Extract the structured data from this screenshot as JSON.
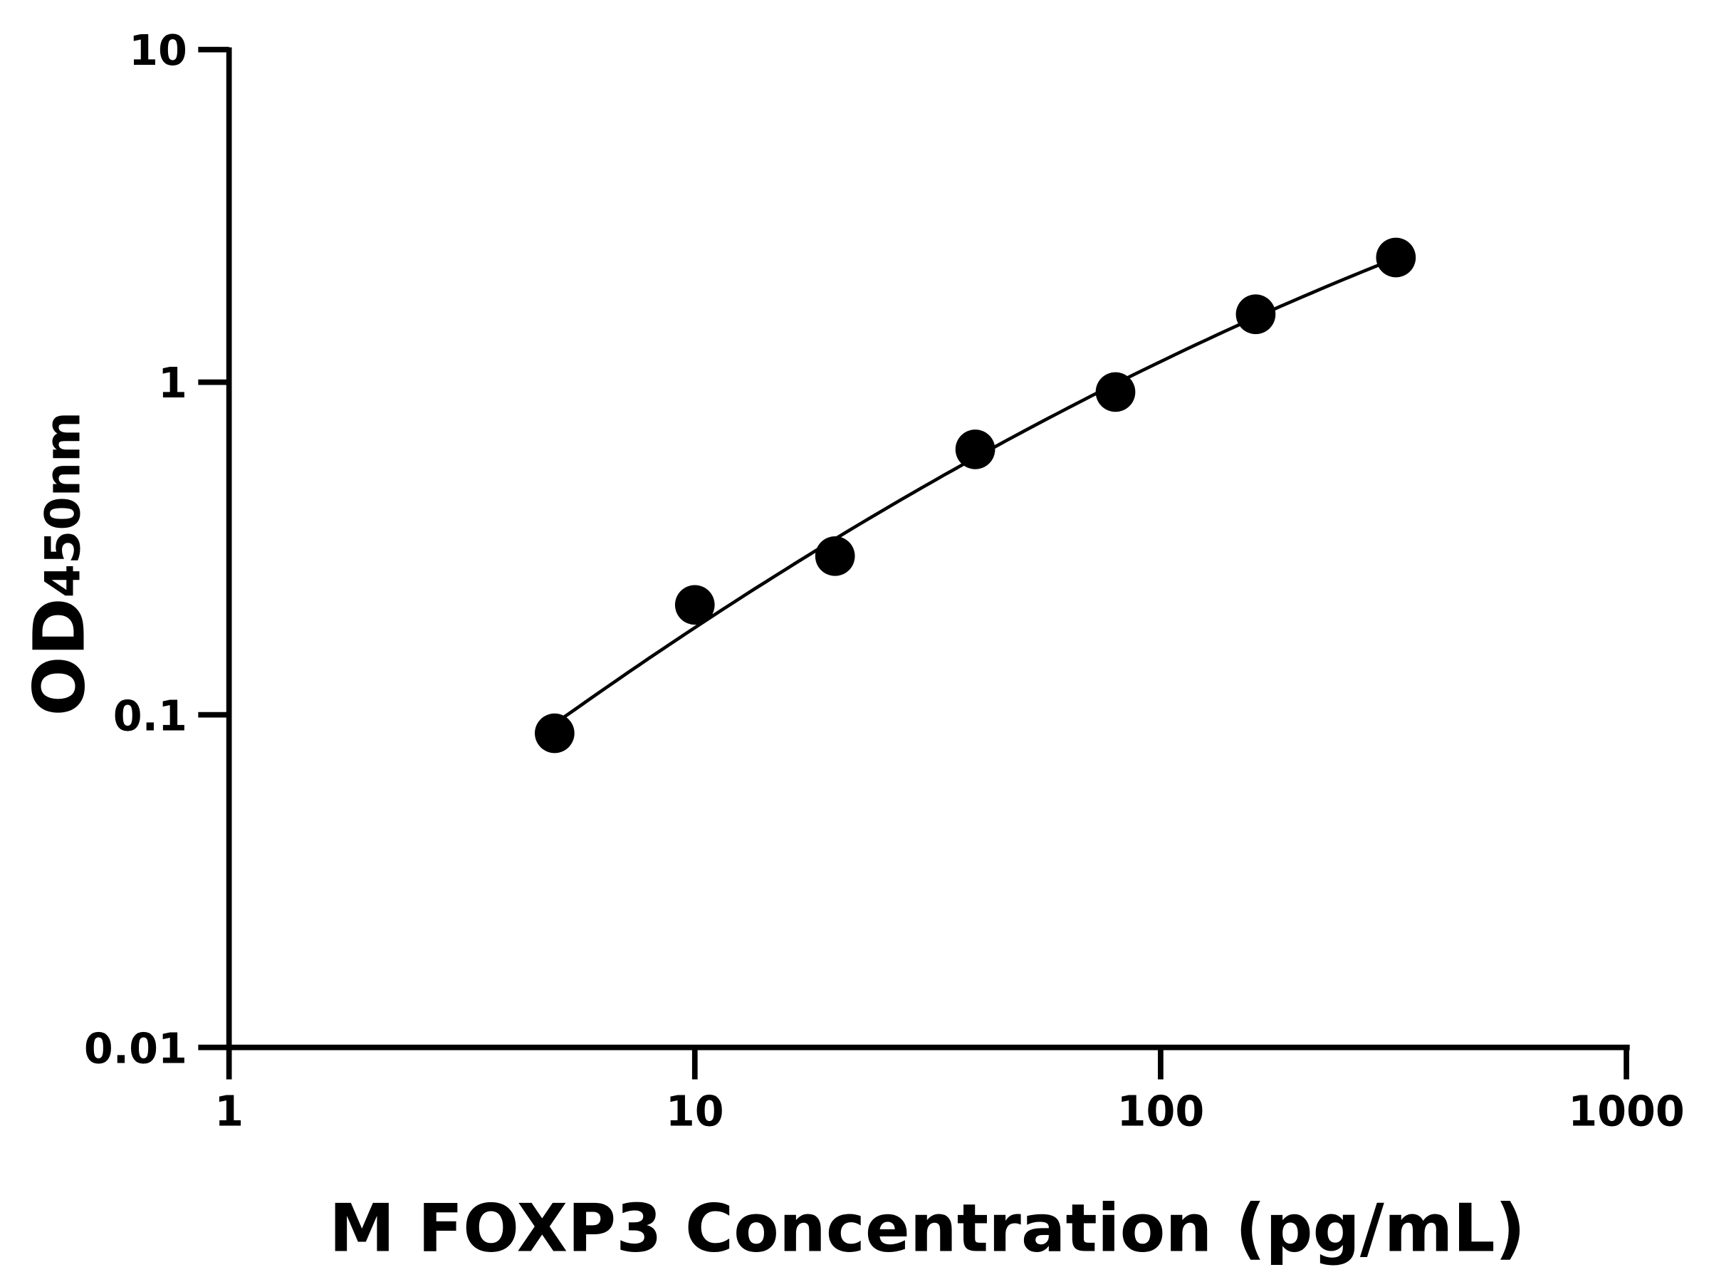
{
  "chart_data": {
    "type": "scatter",
    "title": "",
    "xlabel": "M FOXP3 Concentration (pg/mL)",
    "ylabel": "OD",
    "ylabel_subscript": "450nm",
    "x_scale": "log",
    "y_scale": "log",
    "xlim": [
      1,
      1000
    ],
    "ylim": [
      0.01,
      10
    ],
    "x_ticks": [
      "1",
      "10",
      "100",
      "1000"
    ],
    "y_ticks": [
      "0.01",
      "0.1",
      "1",
      "10"
    ],
    "grid": false,
    "legend": "none",
    "fit_curve": true,
    "color": "#000000",
    "series": [
      {
        "x": [
          5,
          10,
          20,
          40,
          80,
          160,
          320
        ],
        "y": [
          0.088,
          0.214,
          0.3,
          0.628,
          0.934,
          1.6,
          2.37
        ]
      }
    ]
  }
}
